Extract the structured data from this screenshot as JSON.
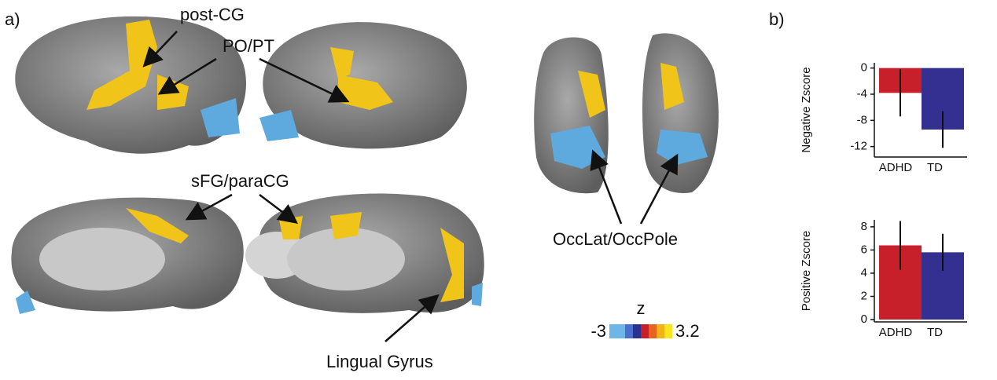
{
  "panel_labels": [
    "a)",
    "b)"
  ],
  "annotations": [
    "post-CG",
    "PO/PT",
    "sFG/paraCG",
    "OccLat/OccPole",
    "Lingual Gyrus"
  ],
  "colorbar": {
    "label": "z",
    "min": -3,
    "max": 3.2
  },
  "chart_data": [
    {
      "type": "bar",
      "y_label": "Negative Zscore",
      "categories": [
        "ADHD",
        "TD"
      ],
      "values": [
        -3.8,
        -9.4
      ],
      "errors": [
        3.6,
        2.8
      ],
      "colors": [
        "#c8202a",
        "#343091"
      ],
      "ylim": [
        -13.6,
        0.8
      ],
      "yticks": [
        0,
        -4,
        -8,
        -12
      ]
    },
    {
      "type": "bar",
      "y_label": "Positive Zscore",
      "categories": [
        "ADHD",
        "TD"
      ],
      "values": [
        6.4,
        5.8
      ],
      "errors": [
        2.1,
        1.6
      ],
      "colors": [
        "#c8202a",
        "#343091"
      ],
      "ylim": [
        -0.2,
        8.6
      ],
      "yticks": [
        0,
        2,
        4,
        6,
        8
      ]
    }
  ]
}
